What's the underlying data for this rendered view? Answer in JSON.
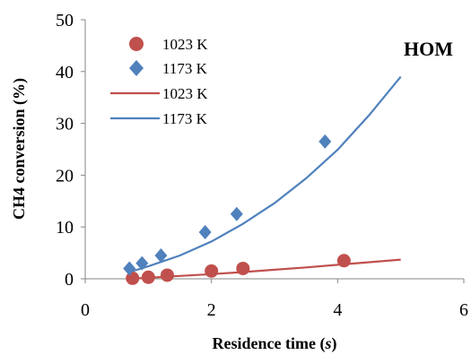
{
  "chart_data": {
    "type": "scatter",
    "xlabel_main": "Residence time (",
    "xlabel_var": "s",
    "xlabel_close": ")",
    "ylabel": "CH4 conversion (%)",
    "annotation": "HOM",
    "xlim": [
      0,
      6
    ],
    "ylim": [
      0,
      50
    ],
    "x_ticks": [
      "0",
      "2",
      "4",
      "6"
    ],
    "y_ticks": [
      "0",
      "10",
      "20",
      "30",
      "40",
      "50"
    ],
    "grid": false,
    "legend_position": "upper-left inside plot",
    "series": [
      {
        "name": "1023 K",
        "kind": "markers",
        "marker": "circle",
        "color": "#C0504D",
        "points": [
          [
            0.75,
            0.1
          ],
          [
            1.0,
            0.3
          ],
          [
            1.3,
            0.7
          ],
          [
            2.0,
            1.5
          ],
          [
            2.5,
            2.0
          ],
          [
            4.1,
            3.5
          ]
        ]
      },
      {
        "name": "1173 K",
        "kind": "markers",
        "marker": "diamond",
        "color": "#4F81BD",
        "points": [
          [
            0.7,
            2.0
          ],
          [
            0.9,
            3.0
          ],
          [
            1.2,
            4.5
          ],
          [
            1.9,
            9.0
          ],
          [
            2.4,
            12.5
          ],
          [
            3.8,
            26.5
          ]
        ]
      },
      {
        "name": "1023 K",
        "kind": "line",
        "color": "#C0504D",
        "points": [
          [
            0.7,
            0.0
          ],
          [
            1.0,
            0.2
          ],
          [
            1.5,
            0.55
          ],
          [
            2.0,
            0.9
          ],
          [
            2.5,
            1.3
          ],
          [
            3.0,
            1.75
          ],
          [
            3.5,
            2.2
          ],
          [
            4.0,
            2.7
          ],
          [
            4.5,
            3.2
          ],
          [
            5.0,
            3.7
          ]
        ]
      },
      {
        "name": "1173 K",
        "kind": "line",
        "color": "#4F81BD",
        "points": [
          [
            0.7,
            1.3
          ],
          [
            1.0,
            2.4
          ],
          [
            1.5,
            4.5
          ],
          [
            2.0,
            7.2
          ],
          [
            2.5,
            10.6
          ],
          [
            3.0,
            14.6
          ],
          [
            3.5,
            19.4
          ],
          [
            4.0,
            24.9
          ],
          [
            4.5,
            31.6
          ],
          [
            5.0,
            39.0
          ]
        ]
      }
    ]
  }
}
